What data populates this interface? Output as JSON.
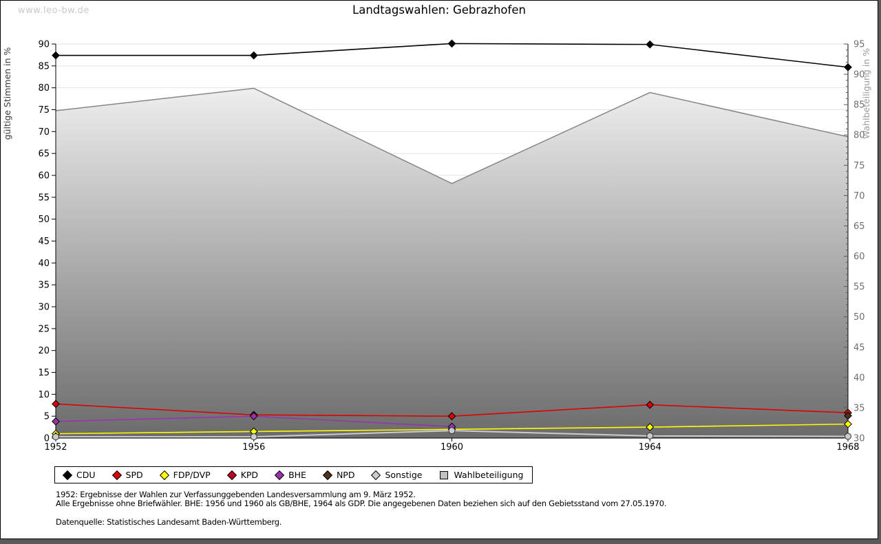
{
  "page": {
    "watermark": "www.leo-bw.de",
    "title": "Landtagswahlen: Gebrazhofen",
    "footnote_1": "1952: Ergebnisse der Wahlen zur Verfassunggebenden Landesversammlung am 9. März 1952.",
    "footnote_2": "Alle Ergebnisse ohne Briefwähler. BHE: 1956 und 1960 als GB/BHE, 1964 als GDP. Die angegebenen Daten beziehen sich auf den Gebietsstand vom 27.05.1970.",
    "source": "Datenquelle: Statistisches Landesamt Baden-Württemberg."
  },
  "chart_data": {
    "type": "line",
    "title": "Landtagswahlen: Gebrazhofen",
    "x": [
      "1952",
      "1956",
      "1960",
      "1964",
      "1968"
    ],
    "left_axis": {
      "label": "gültige Stimmen in %",
      "min": 0,
      "max": 90,
      "tick_step": 5
    },
    "right_axis": {
      "label": "Wahlbeteiligung in %",
      "min": 30,
      "max": 95,
      "tick_step": 5,
      "minor_step": 1
    },
    "grid": true,
    "legend_position": "bottom",
    "series": [
      {
        "name": "Wahlbeteiligung",
        "axis": "right",
        "kind": "area",
        "color": "#858585",
        "fill_top": "#ffffff",
        "fill_bottom": "#6b6b6b",
        "marker": "square",
        "values": [
          84.0,
          87.7,
          72.0,
          87.0,
          79.7
        ]
      },
      {
        "name": "CDU",
        "axis": "left",
        "kind": "line",
        "color": "#000000",
        "marker": "diamond",
        "values": [
          87.4,
          87.4,
          90.1,
          89.9,
          84.7
        ]
      },
      {
        "name": "SPD",
        "axis": "left",
        "kind": "line",
        "color": "#dd0000",
        "marker": "diamond",
        "values": [
          7.8,
          5.3,
          5.0,
          7.6,
          5.8
        ]
      },
      {
        "name": "FDP/DVP",
        "axis": "left",
        "kind": "line",
        "color": "#ffff00",
        "marker": "diamond",
        "values": [
          1.0,
          1.5,
          2.0,
          2.5,
          3.2
        ]
      },
      {
        "name": "KPD",
        "axis": "left",
        "kind": "line",
        "color": "#bb0022",
        "marker": "diamond",
        "values": [
          0.4,
          null,
          null,
          null,
          null
        ]
      },
      {
        "name": "BHE",
        "axis": "left",
        "kind": "line",
        "color": "#9933aa",
        "marker": "diamond",
        "values": [
          3.8,
          5.0,
          2.6,
          null,
          null
        ]
      },
      {
        "name": "NPD",
        "axis": "left",
        "kind": "line",
        "color": "#50311b",
        "marker": "diamond",
        "values": [
          null,
          null,
          null,
          null,
          5.1
        ]
      },
      {
        "name": "Sonstige",
        "axis": "left",
        "kind": "line",
        "color": "#cccccc",
        "marker": "circle",
        "values": [
          0.3,
          0.3,
          1.7,
          0.5,
          0.4
        ]
      }
    ],
    "legend_order": [
      "CDU",
      "SPD",
      "FDP/DVP",
      "KPD",
      "BHE",
      "NPD",
      "Sonstige",
      "Wahlbeteiligung"
    ]
  }
}
